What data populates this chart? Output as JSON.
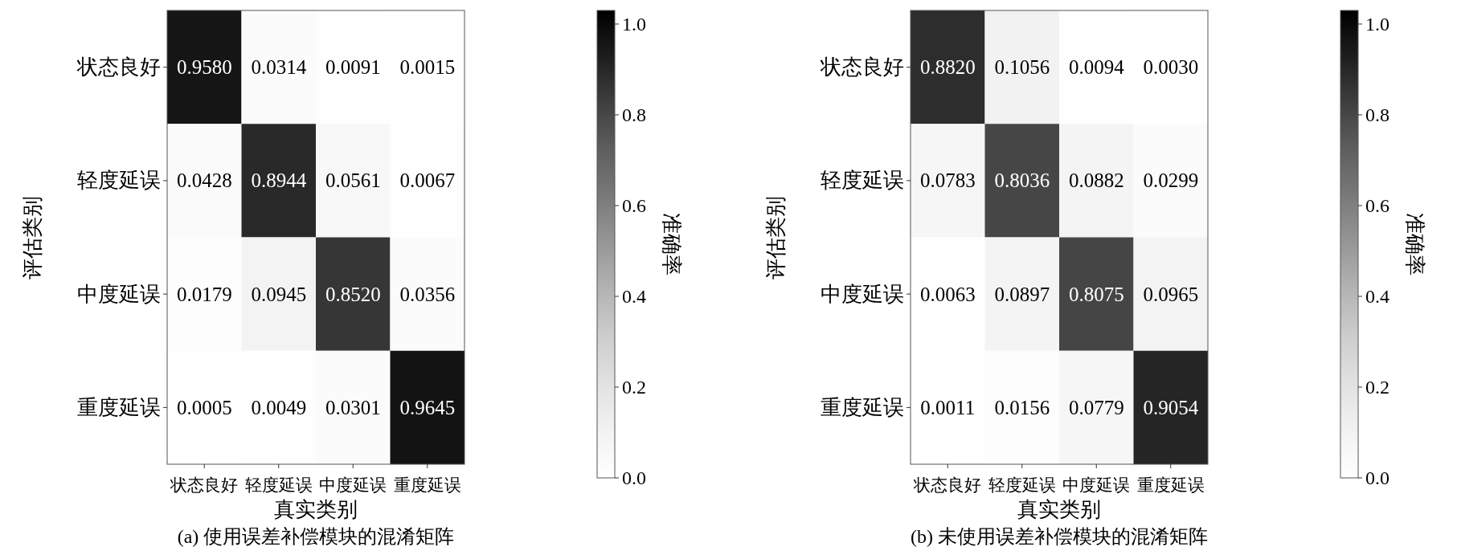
{
  "chart_data": [
    {
      "type": "heatmap",
      "categories": [
        "状态良好",
        "轻度延误",
        "中度延误",
        "重度延误"
      ],
      "y_categories": [
        "状态良好",
        "轻度延误",
        "中度延误",
        "重度延误"
      ],
      "xlabel": "真实类别",
      "ylabel": "评估类别",
      "clabel": "准确率",
      "cells": [
        [
          0.958,
          0.0314,
          0.0091,
          0.0015
        ],
        [
          0.0428,
          0.8944,
          0.0561,
          0.0067
        ],
        [
          0.0179,
          0.0945,
          0.852,
          0.0356
        ],
        [
          0.0005,
          0.0049,
          0.0301,
          0.9645
        ]
      ],
      "cell_labels": [
        [
          "0.9580",
          "0.0314",
          "0.0091",
          "0.0015"
        ],
        [
          "0.0428",
          "0.8944",
          "0.0561",
          "0.0067"
        ],
        [
          "0.0179",
          "0.0945",
          "0.8520",
          "0.0356"
        ],
        [
          "0.0005",
          "0.0049",
          "0.0301",
          "0.9645"
        ]
      ],
      "clim": [
        0,
        1.03
      ],
      "cticks": [
        {
          "value": 0,
          "label": "0.0"
        },
        {
          "value": 0.2,
          "label": "0.2"
        },
        {
          "value": 0.4,
          "label": "0.4"
        },
        {
          "value": 0.6,
          "label": "0.6"
        },
        {
          "value": 0.8,
          "label": "0.8"
        },
        {
          "value": 1,
          "label": "1.0"
        }
      ],
      "annotations": [
        "(a) 使用误差补偿模块的混淆矩阵"
      ]
    },
    {
      "type": "heatmap",
      "categories": [
        "状态良好",
        "轻度延误",
        "中度延误",
        "重度延误"
      ],
      "y_categories": [
        "状态良好",
        "轻度延误",
        "中度延误",
        "重度延误"
      ],
      "xlabel": "真实类别",
      "ylabel": "评估类别",
      "clabel": "准确率",
      "cells": [
        [
          0.882,
          0.1056,
          0.0094,
          0.003
        ],
        [
          0.0783,
          0.8036,
          0.0882,
          0.0299
        ],
        [
          0.0063,
          0.0897,
          0.8075,
          0.0965
        ],
        [
          0.0011,
          0.0156,
          0.0779,
          0.9054
        ]
      ],
      "cell_labels": [
        [
          "0.8820",
          "0.1056",
          "0.0094",
          "0.0030"
        ],
        [
          "0.0783",
          "0.8036",
          "0.0882",
          "0.0299"
        ],
        [
          "0.0063",
          "0.0897",
          "0.8075",
          "0.0965"
        ],
        [
          "0.0011",
          "0.0156",
          "0.0779",
          "0.9054"
        ]
      ],
      "clim": [
        0,
        1.03
      ],
      "cticks": [
        {
          "value": 0,
          "label": "0.0"
        },
        {
          "value": 0.2,
          "label": "0.2"
        },
        {
          "value": 0.4,
          "label": "0.4"
        },
        {
          "value": 0.6,
          "label": "0.6"
        },
        {
          "value": 0.8,
          "label": "0.8"
        },
        {
          "value": 1,
          "label": "1.0"
        }
      ],
      "annotations": [
        "(b) 未使用误差补偿模块的混淆矩阵"
      ]
    }
  ]
}
